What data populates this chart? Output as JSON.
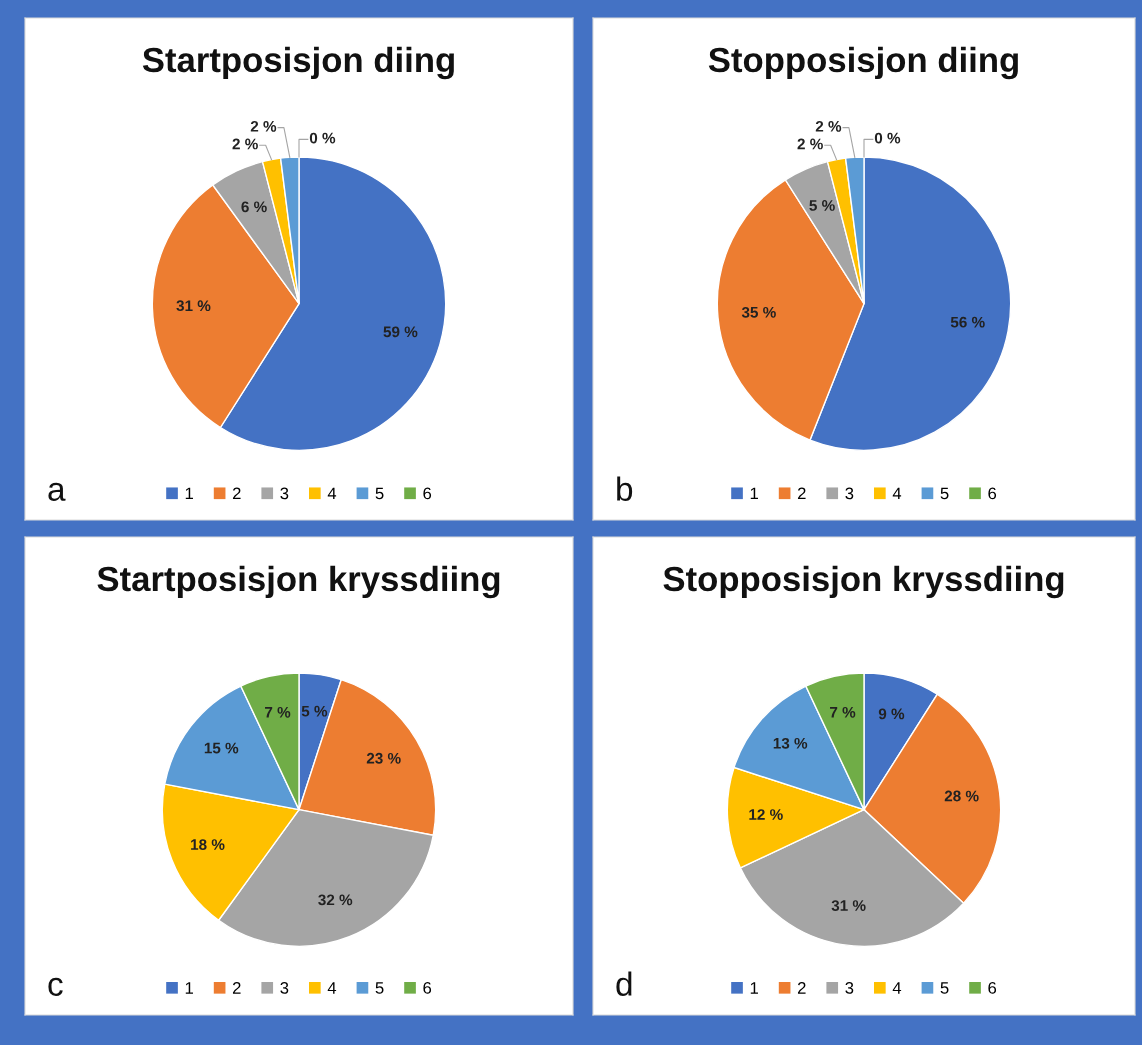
{
  "chart_data": [
    {
      "type": "pie",
      "title": "Startposisjon diing",
      "categories": [
        "1",
        "2",
        "3",
        "4",
        "5",
        "6"
      ],
      "values": [
        59,
        31,
        6,
        2,
        2,
        0
      ],
      "value_labels": [
        "59 %",
        "31 %",
        "6 %",
        "2 %",
        "2 %",
        "0 %"
      ],
      "colors": [
        "#4472c4",
        "#ed7d31",
        "#a5a5a5",
        "#ffc000",
        "#5b9bd5",
        "#70ad47"
      ],
      "legend": "bottom",
      "annotations": [
        "a"
      ]
    },
    {
      "type": "pie",
      "title": "Stopposisjon diing",
      "categories": [
        "1",
        "2",
        "3",
        "4",
        "5",
        "6"
      ],
      "values": [
        56,
        35,
        5,
        2,
        2,
        0
      ],
      "value_labels": [
        "56 %",
        "35 %",
        "5 %",
        "2 %",
        "2 %",
        "0 %"
      ],
      "colors": [
        "#4472c4",
        "#ed7d31",
        "#a5a5a5",
        "#ffc000",
        "#5b9bd5",
        "#70ad47"
      ],
      "legend": "bottom",
      "annotations": [
        "b"
      ]
    },
    {
      "type": "pie",
      "title": "Startposisjon kryssdiing",
      "categories": [
        "1",
        "2",
        "3",
        "4",
        "5",
        "6"
      ],
      "values": [
        5,
        23,
        32,
        18,
        15,
        7
      ],
      "value_labels": [
        "5 %",
        "23 %",
        "32 %",
        "18 %",
        "15 %",
        "7 %"
      ],
      "colors": [
        "#4472c4",
        "#ed7d31",
        "#a5a5a5",
        "#ffc000",
        "#5b9bd5",
        "#70ad47"
      ],
      "legend": "bottom",
      "annotations": [
        "c"
      ]
    },
    {
      "type": "pie",
      "title": "Stopposisjon kryssdiing",
      "categories": [
        "1",
        "2",
        "3",
        "4",
        "5",
        "6"
      ],
      "values": [
        9,
        28,
        31,
        12,
        13,
        7
      ],
      "value_labels": [
        "9 %",
        "28 %",
        "31 %",
        "12 %",
        "13 %",
        "7 %"
      ],
      "colors": [
        "#4472c4",
        "#ed7d31",
        "#a5a5a5",
        "#ffc000",
        "#5b9bd5",
        "#70ad47"
      ],
      "legend": "bottom",
      "annotations": [
        "d"
      ]
    }
  ]
}
